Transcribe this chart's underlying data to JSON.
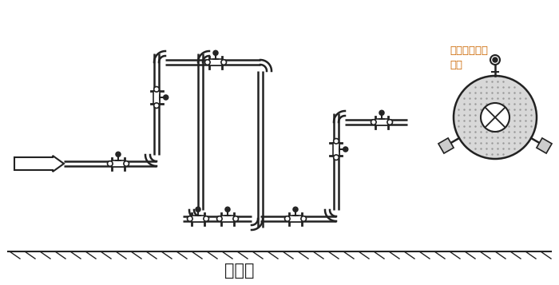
{
  "bg_color": "#ffffff",
  "pipe_color": "#222222",
  "ground_text": "水平面",
  "annotation_text": "允许任意角度\n安装",
  "annotation_color": "#cc6600",
  "fig_width": 7.0,
  "fig_height": 3.57
}
